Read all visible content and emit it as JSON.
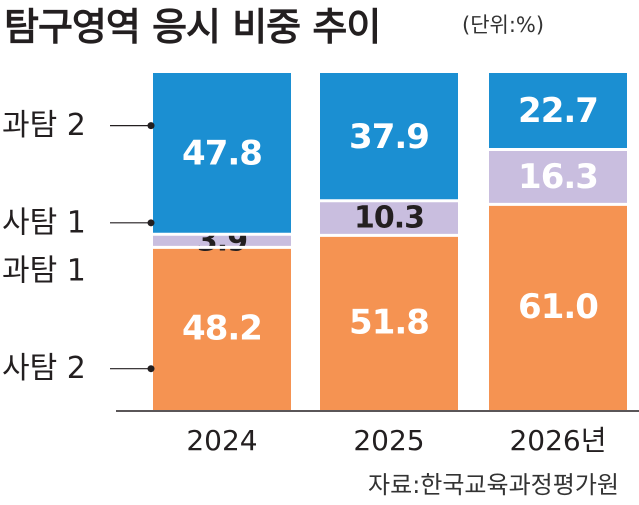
{
  "title": "탐구영역 응시 비중 추이",
  "unit": "(단위:%)",
  "source": "자료:한국교육과정평가원",
  "colors": {
    "sci2": "#1b8fd2",
    "soc1": "#c9bedf",
    "sci1": "#ffffff",
    "soc2": "#f59352",
    "divider": "#ffffff",
    "baseline": "#231f20",
    "text": "#231f20"
  },
  "chart_data": {
    "type": "bar",
    "stacked": true,
    "orientation": "vertical",
    "unit": "%",
    "categories": [
      "2024",
      "2025",
      "2026년"
    ],
    "series": [
      {
        "name": "사탐 2",
        "color_key": "soc2",
        "values": [
          48.2,
          51.8,
          61.0
        ],
        "labels": [
          "48.2",
          "51.8",
          "61.0"
        ]
      },
      {
        "name": "과탐 1",
        "color_key": "sci1",
        "values": [
          0.0,
          0.0,
          0.0
        ],
        "labels": [
          "",
          "",
          ""
        ]
      },
      {
        "name": "사탐 1",
        "color_key": "soc1",
        "values": [
          3.9,
          10.3,
          16.3
        ],
        "labels": [
          "3.9",
          "10.3",
          "16.3"
        ]
      },
      {
        "name": "과탐 2",
        "color_key": "sci2",
        "values": [
          47.8,
          37.9,
          22.7
        ],
        "labels": [
          "47.8",
          "37.9",
          "22.7"
        ]
      }
    ],
    "legend": {
      "placement": "left",
      "order": [
        "과탐 2",
        "사탐 1",
        "과탐 1",
        "사탐 2"
      ]
    },
    "ylim": [
      0,
      100
    ],
    "grid": false
  }
}
